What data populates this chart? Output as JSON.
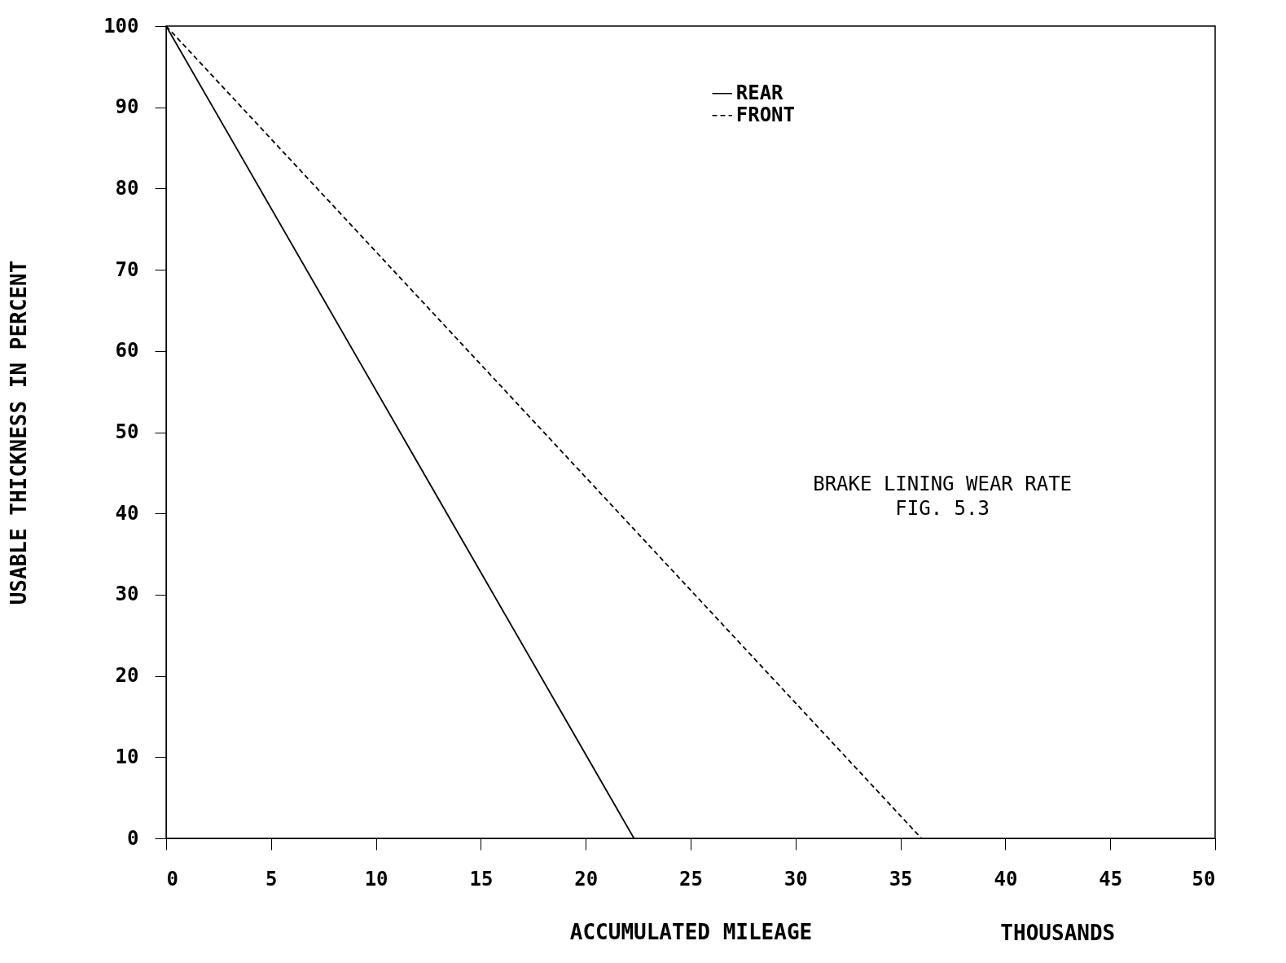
{
  "chart_data": {
    "type": "line",
    "xlabel": "ACCUMULATED MILEAGE",
    "ylabel": "USABLE THICKNESS IN PERCENT",
    "annotations": [
      "THOUSANDS",
      "BRAKE LINING WEAR RATE",
      "FIG. 5.3"
    ],
    "series": [
      {
        "name": "REAR",
        "color": "#000000",
        "line_style": "solid",
        "x": [
          0,
          22.3
        ],
        "values": [
          100,
          0
        ]
      },
      {
        "name": "FRONT",
        "color": "#000000",
        "line_style": "dashed",
        "x": [
          0,
          36
        ],
        "values": [
          100,
          0
        ]
      }
    ],
    "xlim": [
      0,
      50
    ],
    "xticks": [
      0,
      5,
      10,
      15,
      20,
      25,
      30,
      35,
      40,
      45,
      50
    ],
    "ylim": [
      0,
      100
    ],
    "yticks": [
      0,
      10,
      20,
      30,
      40,
      50,
      60,
      70,
      80,
      90,
      100
    ],
    "grid": false,
    "legend": "top",
    "marker": "none"
  }
}
